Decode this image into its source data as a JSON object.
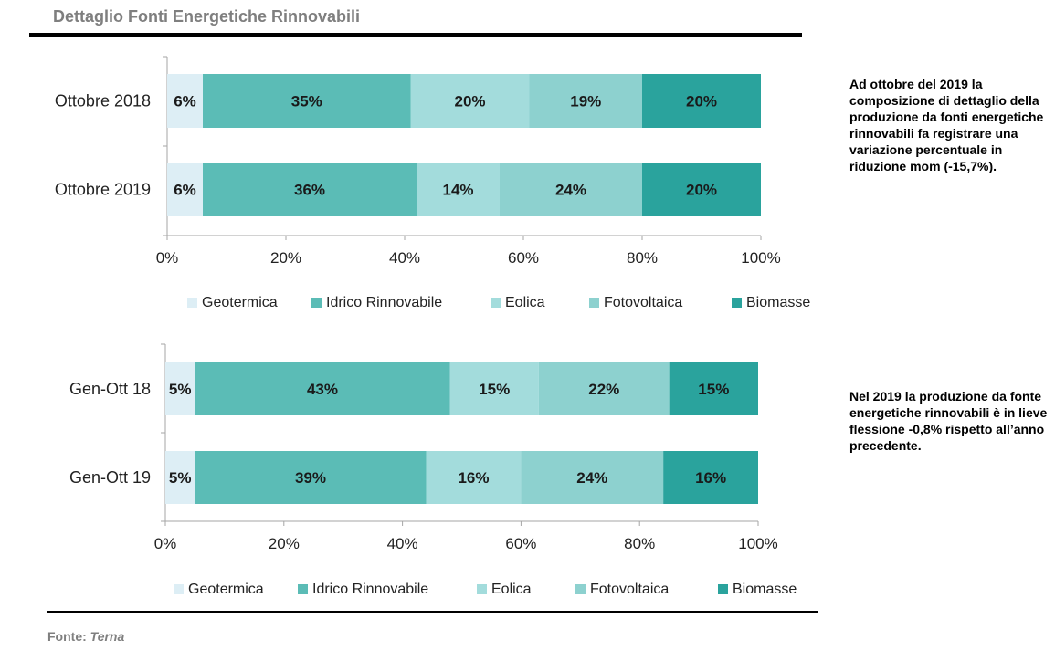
{
  "page": {
    "title": "Dettaglio Fonti Energetiche Rinnovabili",
    "source_label": "Fonte:",
    "source_name": "Terna"
  },
  "notes": [
    "Ad ottobre del 2019 la composizione di dettaglio della produzione da fonti energetiche rinnovabili fa registrare una variazione percentuale in riduzione mom (-15,7%).",
    "Nel 2019 la produzione da fonte energetiche rinnovabili è in lieve flessione -0,8% rispetto all’anno precedente."
  ],
  "colors": {
    "Geotermica": "#ddeef5",
    "Idrico Rinnovabile": "#5bbcb6",
    "Eolica": "#a3dcdc",
    "Fotovoltaica": "#8dd1cf",
    "Biomasse": "#2aa39d"
  },
  "chart_data": [
    {
      "type": "bar",
      "orientation": "horizontal",
      "stacked": "100%",
      "categories": [
        "Ottobre 2018",
        "Ottobre 2019"
      ],
      "series": [
        {
          "name": "Geotermica",
          "values": [
            6,
            6
          ],
          "labels": [
            "6%",
            "6%"
          ]
        },
        {
          "name": "Idrico Rinnovabile",
          "values": [
            35,
            36
          ],
          "labels": [
            "35%",
            "36%"
          ]
        },
        {
          "name": "Eolica",
          "values": [
            20,
            14
          ],
          "labels": [
            "20%",
            "14%"
          ]
        },
        {
          "name": "Fotovoltaica",
          "values": [
            19,
            24
          ],
          "labels": [
            "19%",
            "24%"
          ]
        },
        {
          "name": "Biomasse",
          "values": [
            20,
            20
          ],
          "labels": [
            "20%",
            "20%"
          ]
        }
      ],
      "xticks": [
        "0%",
        "20%",
        "40%",
        "60%",
        "80%",
        "100%"
      ],
      "xlim": [
        0,
        100
      ],
      "grid": false,
      "legend": "bottom"
    },
    {
      "type": "bar",
      "orientation": "horizontal",
      "stacked": "100%",
      "categories": [
        "Gen-Ott 18",
        "Gen-Ott 19"
      ],
      "series": [
        {
          "name": "Geotermica",
          "values": [
            5,
            5
          ],
          "labels": [
            "5%",
            "5%"
          ]
        },
        {
          "name": "Idrico Rinnovabile",
          "values": [
            43,
            39
          ],
          "labels": [
            "43%",
            "39%"
          ]
        },
        {
          "name": "Eolica",
          "values": [
            15,
            16
          ],
          "labels": [
            "15%",
            "16%"
          ]
        },
        {
          "name": "Fotovoltaica",
          "values": [
            22,
            24
          ],
          "labels": [
            "22%",
            "24%"
          ]
        },
        {
          "name": "Biomasse",
          "values": [
            15,
            16
          ],
          "labels": [
            "15%",
            "16%"
          ]
        }
      ],
      "xticks": [
        "0%",
        "20%",
        "40%",
        "60%",
        "80%",
        "100%"
      ],
      "xlim": [
        0,
        100
      ],
      "grid": false,
      "legend": "bottom"
    }
  ]
}
